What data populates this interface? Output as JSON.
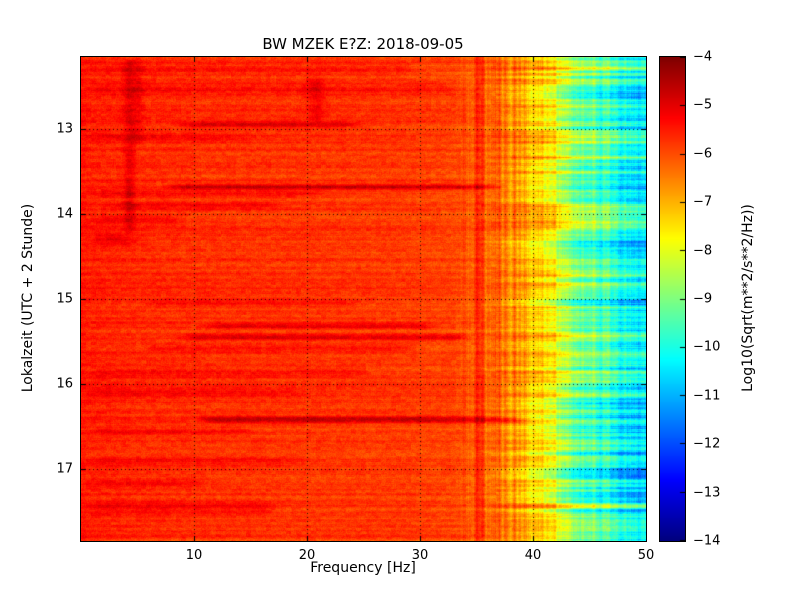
{
  "chart_data": {
    "type": "heatmap",
    "title": "BW MZEK E?Z: 2018-09-05",
    "xlabel": "Frequency [Hz]",
    "ylabel": "Lokalzeit (UTC + 2 Stunde)",
    "x_range": [
      0,
      50
    ],
    "x_ticks": [
      10,
      20,
      30,
      40,
      50
    ],
    "y_range": [
      12.15,
      17.85
    ],
    "y_direction": "down",
    "y_ticks": [
      13,
      14,
      15,
      16,
      17
    ],
    "grid": {
      "show": true,
      "style": "dotted",
      "color": "#000000"
    },
    "colormap": "jet",
    "value_range": [
      -14,
      -4
    ],
    "colorbar": {
      "label": "Log10(Sqrt(m**2/s**2/Hz))",
      "ticks": [
        -4,
        -5,
        -6,
        -7,
        -8,
        -9,
        -10,
        -11,
        -12,
        -13,
        -14
      ]
    },
    "background_profile": [
      [
        0,
        -5.45
      ],
      [
        1,
        -5.55
      ],
      [
        5,
        -5.65
      ],
      [
        10,
        -5.7
      ],
      [
        20,
        -5.75
      ],
      [
        28,
        -5.8
      ],
      [
        33,
        -5.9
      ],
      [
        36,
        -6.15
      ],
      [
        38,
        -6.5
      ],
      [
        40,
        -7.0
      ],
      [
        41,
        -7.5
      ],
      [
        42,
        -8.0
      ],
      [
        43,
        -8.5
      ],
      [
        44,
        -8.9
      ],
      [
        45,
        -9.2
      ],
      [
        46,
        -9.5
      ],
      [
        47,
        -9.8
      ],
      [
        48,
        -10.0
      ],
      [
        50,
        -10.3
      ]
    ],
    "time_events": [
      {
        "t": 12.3,
        "f0": 0,
        "f1": 30,
        "amp": 0.3,
        "w": 0.05
      },
      {
        "t": 12.52,
        "f0": 0,
        "f1": 34,
        "amp": 0.35,
        "w": 0.045
      },
      {
        "t": 12.95,
        "f0": 8,
        "f1": 25,
        "amp": 0.85,
        "w": 0.022
      },
      {
        "t": 13.1,
        "f0": 0,
        "f1": 16,
        "amp": 0.35,
        "w": 0.03
      },
      {
        "t": 13.68,
        "f0": 7,
        "f1": 38,
        "amp": 1.0,
        "w": 0.022
      },
      {
        "t": 13.76,
        "f0": 0,
        "f1": 22,
        "amp": 0.4,
        "w": 0.03
      },
      {
        "t": 13.9,
        "f0": 2,
        "f1": 18,
        "amp": 0.4,
        "w": 0.03
      },
      {
        "t": 14.06,
        "f0": 0,
        "f1": 10,
        "amp": 0.45,
        "w": 0.04
      },
      {
        "t": 14.3,
        "f0": 0,
        "f1": 6,
        "amp": 0.5,
        "w": 0.05
      },
      {
        "t": 15.05,
        "f0": 5,
        "f1": 25,
        "amp": 0.4,
        "w": 0.028
      },
      {
        "t": 15.32,
        "f0": 10,
        "f1": 32,
        "amp": 0.7,
        "w": 0.024
      },
      {
        "t": 15.45,
        "f0": 8,
        "f1": 35,
        "amp": 0.8,
        "w": 0.024
      },
      {
        "t": 15.58,
        "f0": 5,
        "f1": 30,
        "amp": 0.5,
        "w": 0.028
      },
      {
        "t": 15.86,
        "f0": 0,
        "f1": 26,
        "amp": 0.35,
        "w": 0.04
      },
      {
        "t": 16.1,
        "f0": 0,
        "f1": 20,
        "amp": 0.35,
        "w": 0.04
      },
      {
        "t": 16.42,
        "f0": 10,
        "f1": 40,
        "amp": 1.0,
        "w": 0.028
      },
      {
        "t": 16.56,
        "f0": 0,
        "f1": 16,
        "amp": 0.4,
        "w": 0.03
      },
      {
        "t": 16.9,
        "f0": 0,
        "f1": 20,
        "amp": 0.3,
        "w": 0.04
      },
      {
        "t": 17.16,
        "f0": 0,
        "f1": 12,
        "amp": 0.4,
        "w": 0.04
      },
      {
        "t": 17.46,
        "f0": 0,
        "f1": 18,
        "amp": 0.45,
        "w": 0.05
      }
    ],
    "vertical_features": [
      {
        "f": 4.3,
        "t0": 12.15,
        "t1": 14.25,
        "amp": 0.55,
        "w": 0.35
      },
      {
        "f": 5.1,
        "t0": 12.15,
        "t1": 13.2,
        "amp": 0.35,
        "w": 0.3
      },
      {
        "f": 20.8,
        "t0": 12.35,
        "t1": 12.95,
        "amp": 0.5,
        "w": 0.55
      }
    ],
    "noise": {
      "pixel": 0.2,
      "block": 0.15,
      "row_hf_sd": 0.45,
      "row_slow_sd": 0.35,
      "row_all_sd": 0.1,
      "col_hf_sd": 0.22
    }
  }
}
